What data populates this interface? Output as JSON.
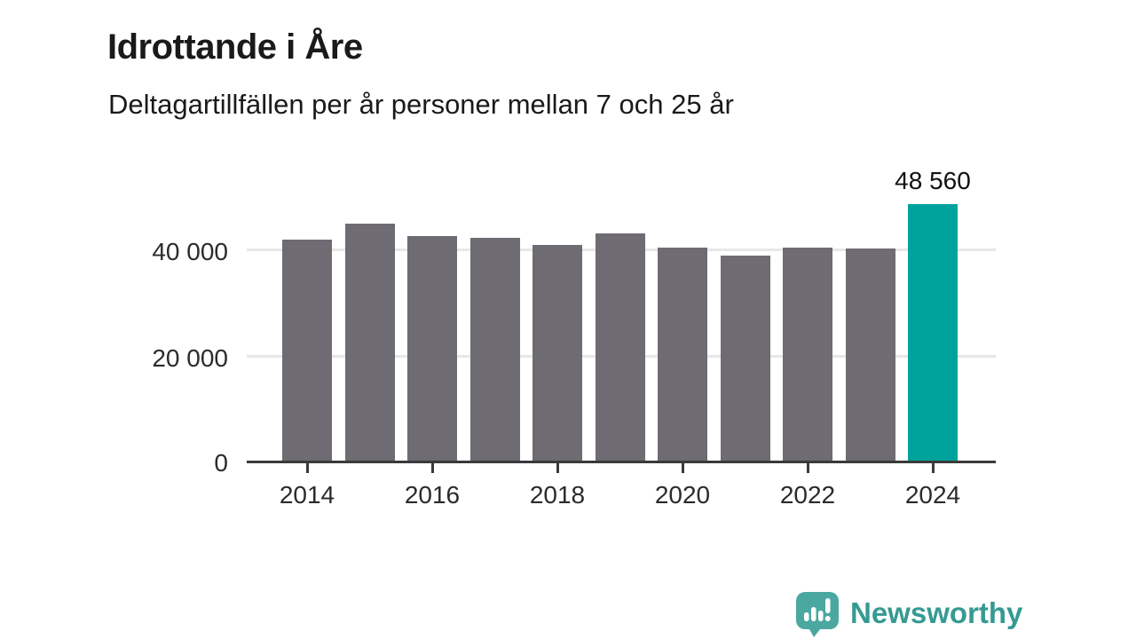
{
  "header": {
    "title": "Idrottande i Åre",
    "subtitle": "Deltagartillfällen per år personer mellan 7 och 25 år"
  },
  "chart_data": {
    "type": "bar",
    "title": "Idrottande i Åre",
    "subtitle": "Deltagartillfällen per år personer mellan 7 och 25 år",
    "categories": [
      "2014",
      "2015",
      "2016",
      "2017",
      "2018",
      "2019",
      "2020",
      "2021",
      "2022",
      "2023",
      "2024"
    ],
    "values": [
      41900,
      44800,
      42500,
      42100,
      40900,
      43000,
      40400,
      38900,
      40300,
      40200,
      48560
    ],
    "highlight_index": 10,
    "highlight_value_label": "48 560",
    "bar_color": "#6e6b73",
    "highlight_color": "#00a39b",
    "axis_color": "#3a3a3a",
    "grid_color": "#e7e7e7",
    "text_color": "#2b2b2b",
    "y_ticks": [
      {
        "value": 0,
        "label": "0"
      },
      {
        "value": 20000,
        "label": "20 000"
      },
      {
        "value": 40000,
        "label": "40 000"
      }
    ],
    "x_ticks": [
      "2014",
      "2016",
      "2018",
      "2020",
      "2022",
      "2024"
    ],
    "ylim": [
      0,
      50000
    ],
    "grid": "horizontal",
    "legend": "none"
  },
  "branding": {
    "label": "Newsworthy",
    "text_color": "#359a92",
    "icon_color": "#4BA8A0",
    "icon": "newsworthy-bubble-chart-icon"
  }
}
